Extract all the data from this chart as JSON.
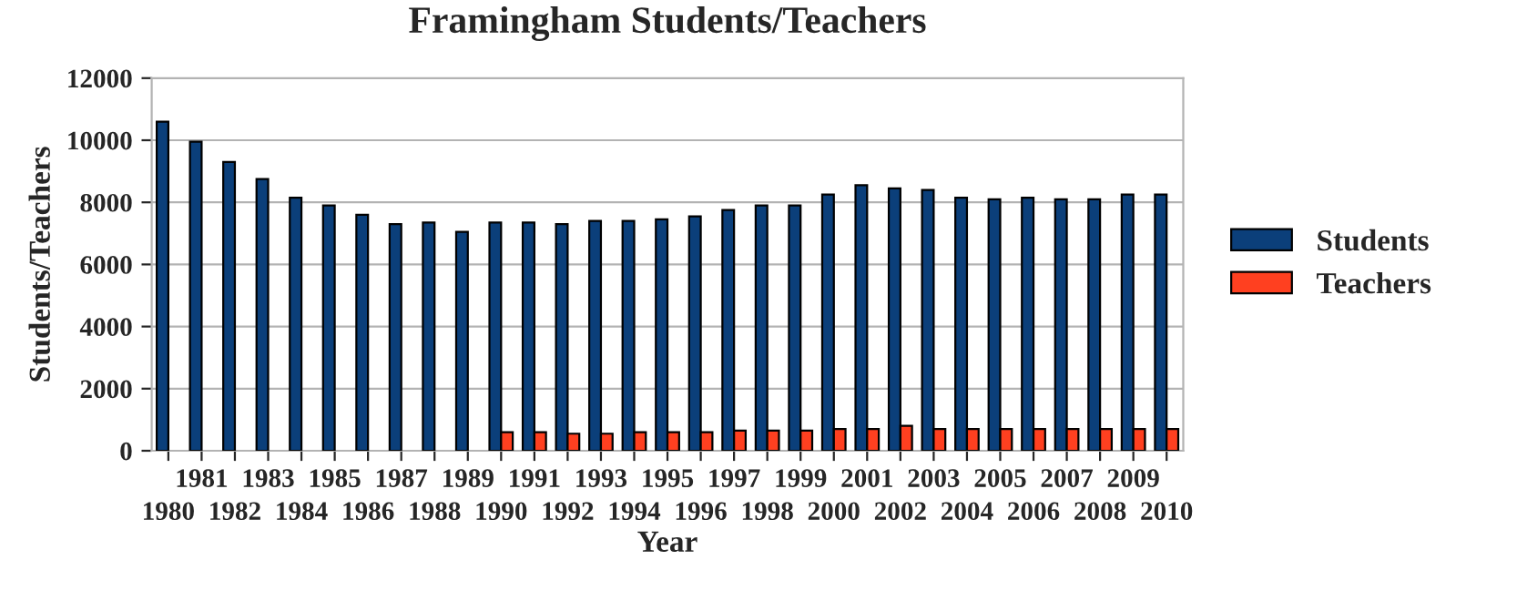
{
  "chart_data": {
    "type": "bar",
    "title": "Framingham Students/Teachers",
    "xlabel": "Year",
    "ylabel": "Students/Teachers",
    "categories": [
      "1980",
      "1981",
      "1982",
      "1983",
      "1984",
      "1985",
      "1986",
      "1987",
      "1988",
      "1989",
      "1990",
      "1991",
      "1992",
      "1993",
      "1994",
      "1995",
      "1996",
      "1997",
      "1998",
      "1999",
      "2000",
      "2001",
      "2002",
      "2003",
      "2004",
      "2005",
      "2006",
      "2007",
      "2008",
      "2009",
      "2010"
    ],
    "series": [
      {
        "name": "Students",
        "color": "#0b3f7a",
        "values": [
          10600,
          9950,
          9300,
          8750,
          8150,
          7900,
          7600,
          7300,
          7350,
          7050,
          7350,
          7350,
          7300,
          7400,
          7400,
          7450,
          7550,
          7750,
          7900,
          7900,
          8250,
          8550,
          8450,
          8400,
          8150,
          8100,
          8150,
          8100,
          8100,
          8250,
          8250
        ]
      },
      {
        "name": "Teachers",
        "color": "#ff4020",
        "values": [
          null,
          null,
          null,
          null,
          null,
          null,
          null,
          null,
          null,
          null,
          600,
          600,
          550,
          550,
          600,
          600,
          600,
          650,
          650,
          650,
          700,
          700,
          800,
          700,
          700,
          700,
          700,
          700,
          700,
          700,
          700
        ]
      }
    ],
    "ylim": [
      0,
      12000
    ],
    "yticks": [
      0,
      2000,
      4000,
      6000,
      8000,
      10000,
      12000
    ],
    "grid": "y",
    "legend": "right"
  }
}
